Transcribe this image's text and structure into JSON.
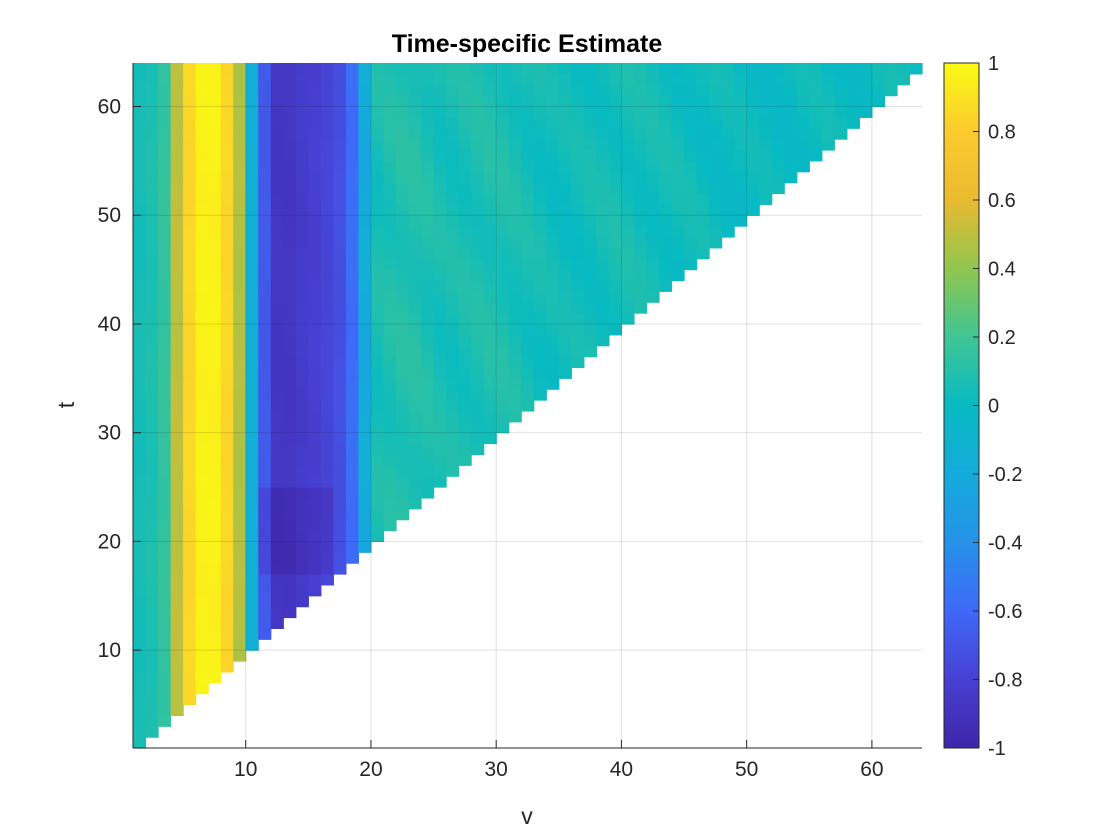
{
  "chart_data": {
    "type": "heatmap",
    "title": "Time-specific Estimate",
    "xlabel": "v",
    "ylabel": "t",
    "xlim": [
      1,
      64
    ],
    "ylim": [
      1,
      64
    ],
    "xticks": [
      10,
      20,
      30,
      40,
      50,
      60
    ],
    "yticks": [
      10,
      20,
      30,
      40,
      50,
      60
    ],
    "grid": true,
    "mask": "upper-left triangle (v <= t)",
    "colormap": "parula",
    "colorbar": {
      "limits": [
        -1,
        1
      ],
      "ticks": [
        1,
        0.8,
        0.6,
        0.4,
        0.2,
        0,
        -0.2,
        -0.4,
        -0.6,
        -0.8,
        -1
      ],
      "tick_labels": [
        "1",
        "0.8",
        "0.6",
        "0.4",
        "0.2",
        "0",
        "-0.2",
        "-0.4",
        "-0.6",
        "-0.8",
        "-1"
      ]
    },
    "estimate_by_v": {
      "v": [
        1,
        2,
        3,
        4,
        5,
        6,
        7,
        8,
        9,
        10,
        11,
        12,
        13,
        14,
        16,
        18,
        19,
        20,
        23,
        26,
        30,
        35,
        40,
        50,
        64
      ],
      "value": [
        0.0,
        0.1,
        0.05,
        0.25,
        0.75,
        0.95,
        0.98,
        0.95,
        0.75,
        0.2,
        -0.5,
        -0.85,
        -0.9,
        -0.85,
        -0.8,
        -0.7,
        -0.45,
        0.05,
        0.1,
        0.05,
        0.08,
        0.02,
        0.05,
        0.0,
        0.02
      ]
    }
  }
}
